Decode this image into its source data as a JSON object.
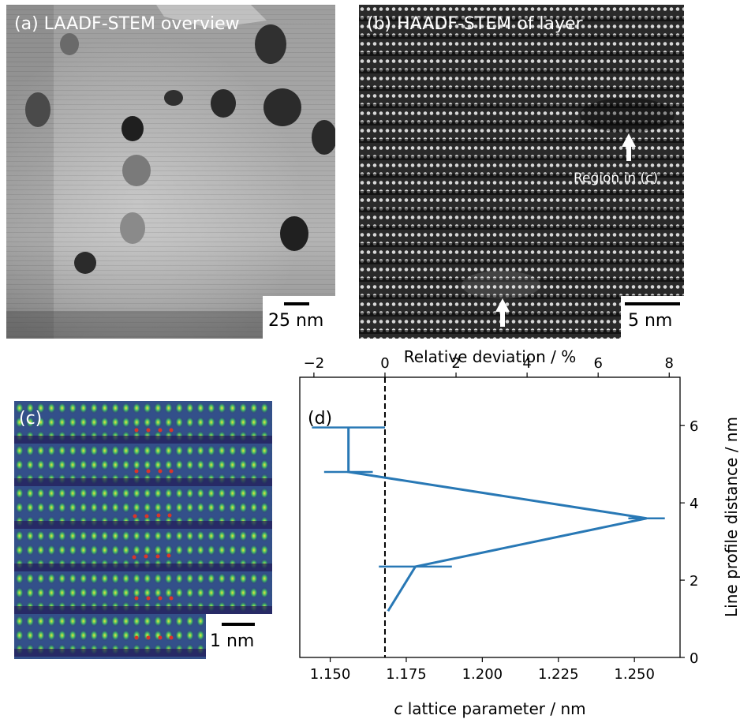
{
  "panels": {
    "a": {
      "label": "(a) LAADF-STEM overview",
      "scalebar": "25 nm"
    },
    "b": {
      "label": "(b) HAADF-STEM of layer",
      "scalebar": "5 nm",
      "annotation": "Region in (c)"
    },
    "c": {
      "label": "(c)",
      "scalebar": "1 nm"
    },
    "d": {
      "label": "(d)"
    }
  },
  "colors": {
    "series": "#2878b5",
    "dots": "#d9352a",
    "dashed": "#000000"
  },
  "chart_data": {
    "type": "line",
    "x": [
      1.169,
      1.178,
      1.254,
      1.156,
      1.156
    ],
    "y": [
      1.2,
      2.35,
      3.6,
      4.8,
      5.95
    ],
    "x_error": [
      0.0,
      0.012,
      0.006,
      0.008,
      0.012
    ],
    "reference_x": 1.168,
    "xlabel": "c lattice parameter / nm",
    "xlabel_italic_prefix": "c",
    "xlabel_rest": " lattice parameter / nm",
    "x2label": "Relative deviation / %",
    "ylabel": "Line profile distance / nm",
    "xlim": [
      1.14,
      1.265
    ],
    "ylim": [
      0,
      7.25
    ],
    "x_ticks": [
      "1.150",
      "1.175",
      "1.200",
      "1.225",
      "1.250"
    ],
    "x2_ticks": [
      "−2",
      "0",
      "2",
      "4",
      "6",
      "8"
    ],
    "y_ticks": [
      "0",
      "2",
      "4",
      "6"
    ],
    "grid": false
  }
}
